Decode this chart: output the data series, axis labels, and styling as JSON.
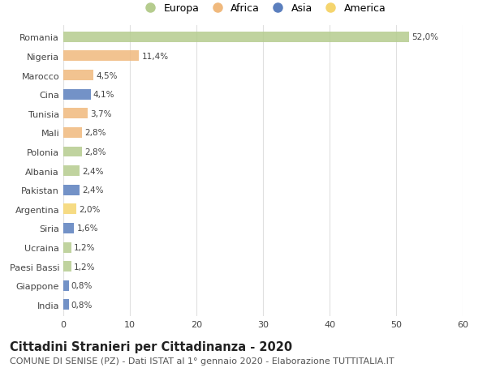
{
  "countries": [
    "Romania",
    "Nigeria",
    "Marocco",
    "Cina",
    "Tunisia",
    "Mali",
    "Polonia",
    "Albania",
    "Pakistan",
    "Argentina",
    "Siria",
    "Ucraina",
    "Paesi Bassi",
    "Giappone",
    "India"
  ],
  "values": [
    52.0,
    11.4,
    4.5,
    4.1,
    3.7,
    2.8,
    2.8,
    2.4,
    2.4,
    2.0,
    1.6,
    1.2,
    1.2,
    0.8,
    0.8
  ],
  "labels": [
    "52,0%",
    "11,4%",
    "4,5%",
    "4,1%",
    "3,7%",
    "2,8%",
    "2,8%",
    "2,4%",
    "2,4%",
    "2,0%",
    "1,6%",
    "1,2%",
    "1,2%",
    "0,8%",
    "0,8%"
  ],
  "continents": [
    "Europa",
    "Africa",
    "Africa",
    "Asia",
    "Africa",
    "Africa",
    "Europa",
    "Europa",
    "Asia",
    "America",
    "Asia",
    "Europa",
    "Europa",
    "Asia",
    "Asia"
  ],
  "continent_colors": {
    "Europa": "#b5cc8e",
    "Africa": "#f0b97d",
    "Asia": "#5b7fbe",
    "America": "#f5d56e"
  },
  "legend_order": [
    "Europa",
    "Africa",
    "Asia",
    "America"
  ],
  "xlim": [
    0,
    60
  ],
  "xticks": [
    0,
    10,
    20,
    30,
    40,
    50,
    60
  ],
  "title": "Cittadini Stranieri per Cittadinanza - 2020",
  "subtitle": "COMUNE DI SENISE (PZ) - Dati ISTAT al 1° gennaio 2020 - Elaborazione TUTTITALIA.IT",
  "bg_color": "#ffffff",
  "grid_color": "#e0e0e0",
  "bar_height": 0.55,
  "title_fontsize": 10.5,
  "subtitle_fontsize": 8,
  "label_fontsize": 7.5,
  "tick_fontsize": 8,
  "legend_fontsize": 9
}
